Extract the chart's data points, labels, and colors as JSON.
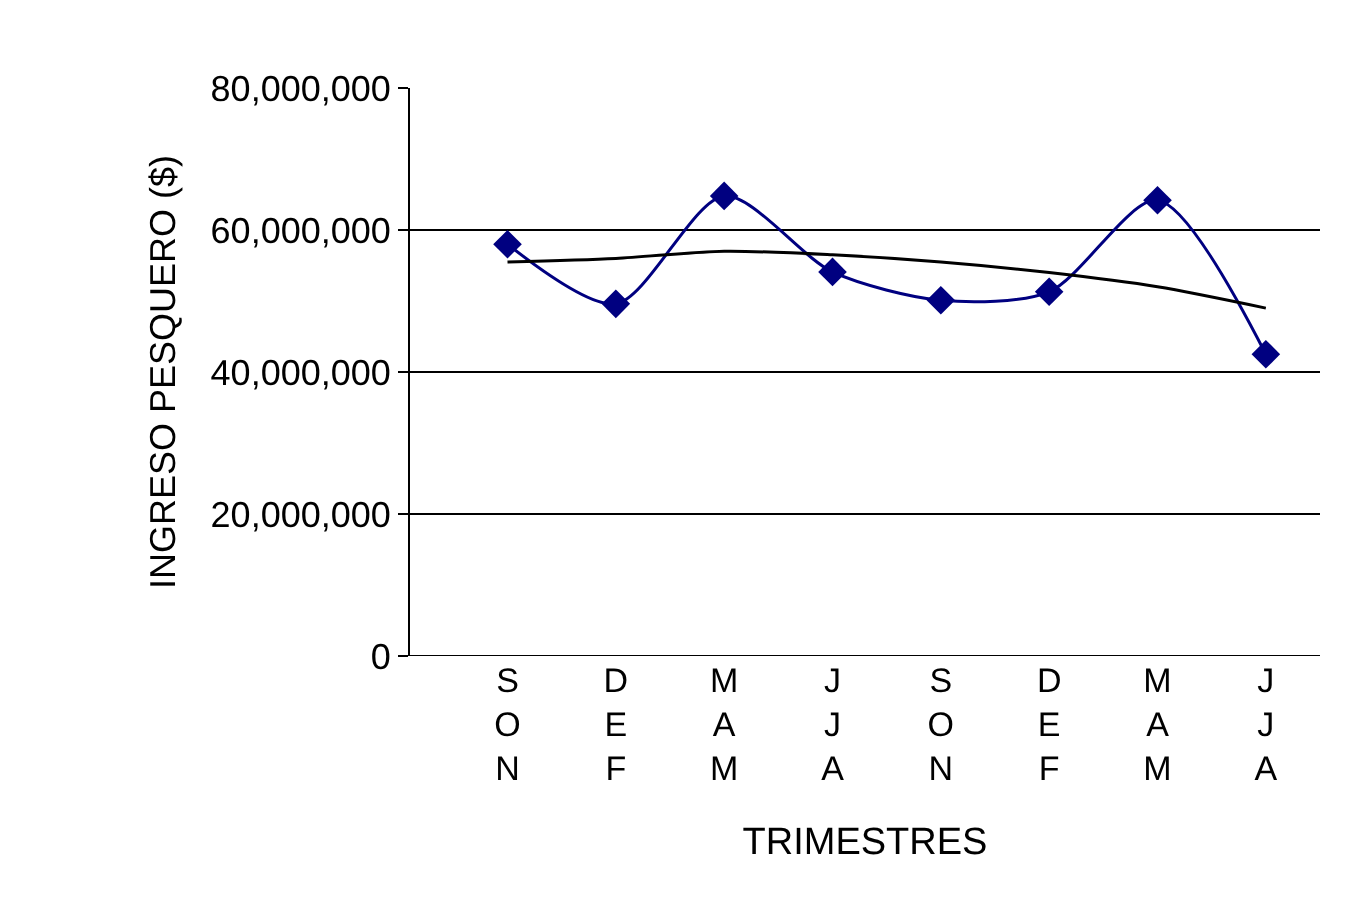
{
  "chart_data": {
    "type": "line",
    "xlabel": "TRIMESTRES",
    "ylabel": "INGRESO PESQUERO ($)",
    "categories": [
      "SON",
      "DEF",
      "MAM",
      "JJA",
      "SON",
      "DEF",
      "MAM",
      "JJA"
    ],
    "series": [
      {
        "color": "#000080",
        "marker": "diamond",
        "values": [
          58000000,
          49600000,
          64800000,
          54100000,
          50100000,
          51300000,
          64200000,
          42500000
        ]
      },
      {
        "color": "#000000",
        "marker": "none",
        "values": [
          55500000,
          56000000,
          57000000,
          56500000,
          55500000,
          54000000,
          52000000,
          49000000
        ]
      }
    ],
    "ylim": [
      0,
      80000000
    ],
    "yticks": [
      {
        "value": 0,
        "label": "0"
      },
      {
        "value": 20000000,
        "label": "20,000,000"
      },
      {
        "value": 40000000,
        "label": "40,000,000"
      },
      {
        "value": 60000000,
        "label": "60,000,000"
      },
      {
        "value": 80000000,
        "label": "80,000,000"
      }
    ],
    "grid": "y"
  }
}
